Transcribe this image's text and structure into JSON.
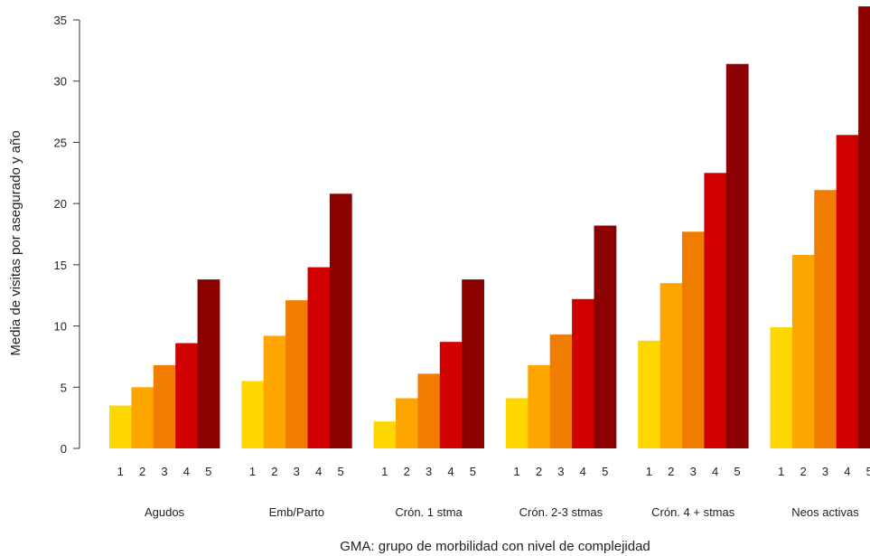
{
  "chart_data": {
    "type": "bar",
    "title": "",
    "xlabel": "GMA: grupo de morbilidad con nivel de complejidad",
    "ylabel": "Media de visitas por asegurado y año",
    "ylim": [
      0,
      36
    ],
    "yticks": [
      0,
      5,
      10,
      15,
      20,
      25,
      30,
      35
    ],
    "grid": false,
    "legend": "none",
    "subcategories": [
      "1",
      "2",
      "3",
      "4",
      "5"
    ],
    "colors": [
      "#FFD700",
      "#FFA500",
      "#F07C00",
      "#D10000",
      "#8B0000"
    ],
    "groups": [
      {
        "name": "Agudos",
        "values": [
          3.5,
          5.0,
          6.8,
          8.6,
          13.8
        ]
      },
      {
        "name": "Emb/Parto",
        "values": [
          5.5,
          9.2,
          12.1,
          14.8,
          20.8
        ]
      },
      {
        "name": "Crón. 1 stma",
        "values": [
          2.2,
          4.1,
          6.1,
          8.7,
          13.8
        ]
      },
      {
        "name": "Crón. 2-3 stmas",
        "values": [
          4.1,
          6.8,
          9.3,
          12.2,
          18.2
        ]
      },
      {
        "name": "Crón. 4 + stmas",
        "values": [
          8.8,
          13.5,
          17.7,
          22.5,
          31.4
        ]
      },
      {
        "name": "Neos activas",
        "values": [
          9.9,
          15.8,
          21.1,
          25.6,
          36.1
        ]
      }
    ]
  }
}
